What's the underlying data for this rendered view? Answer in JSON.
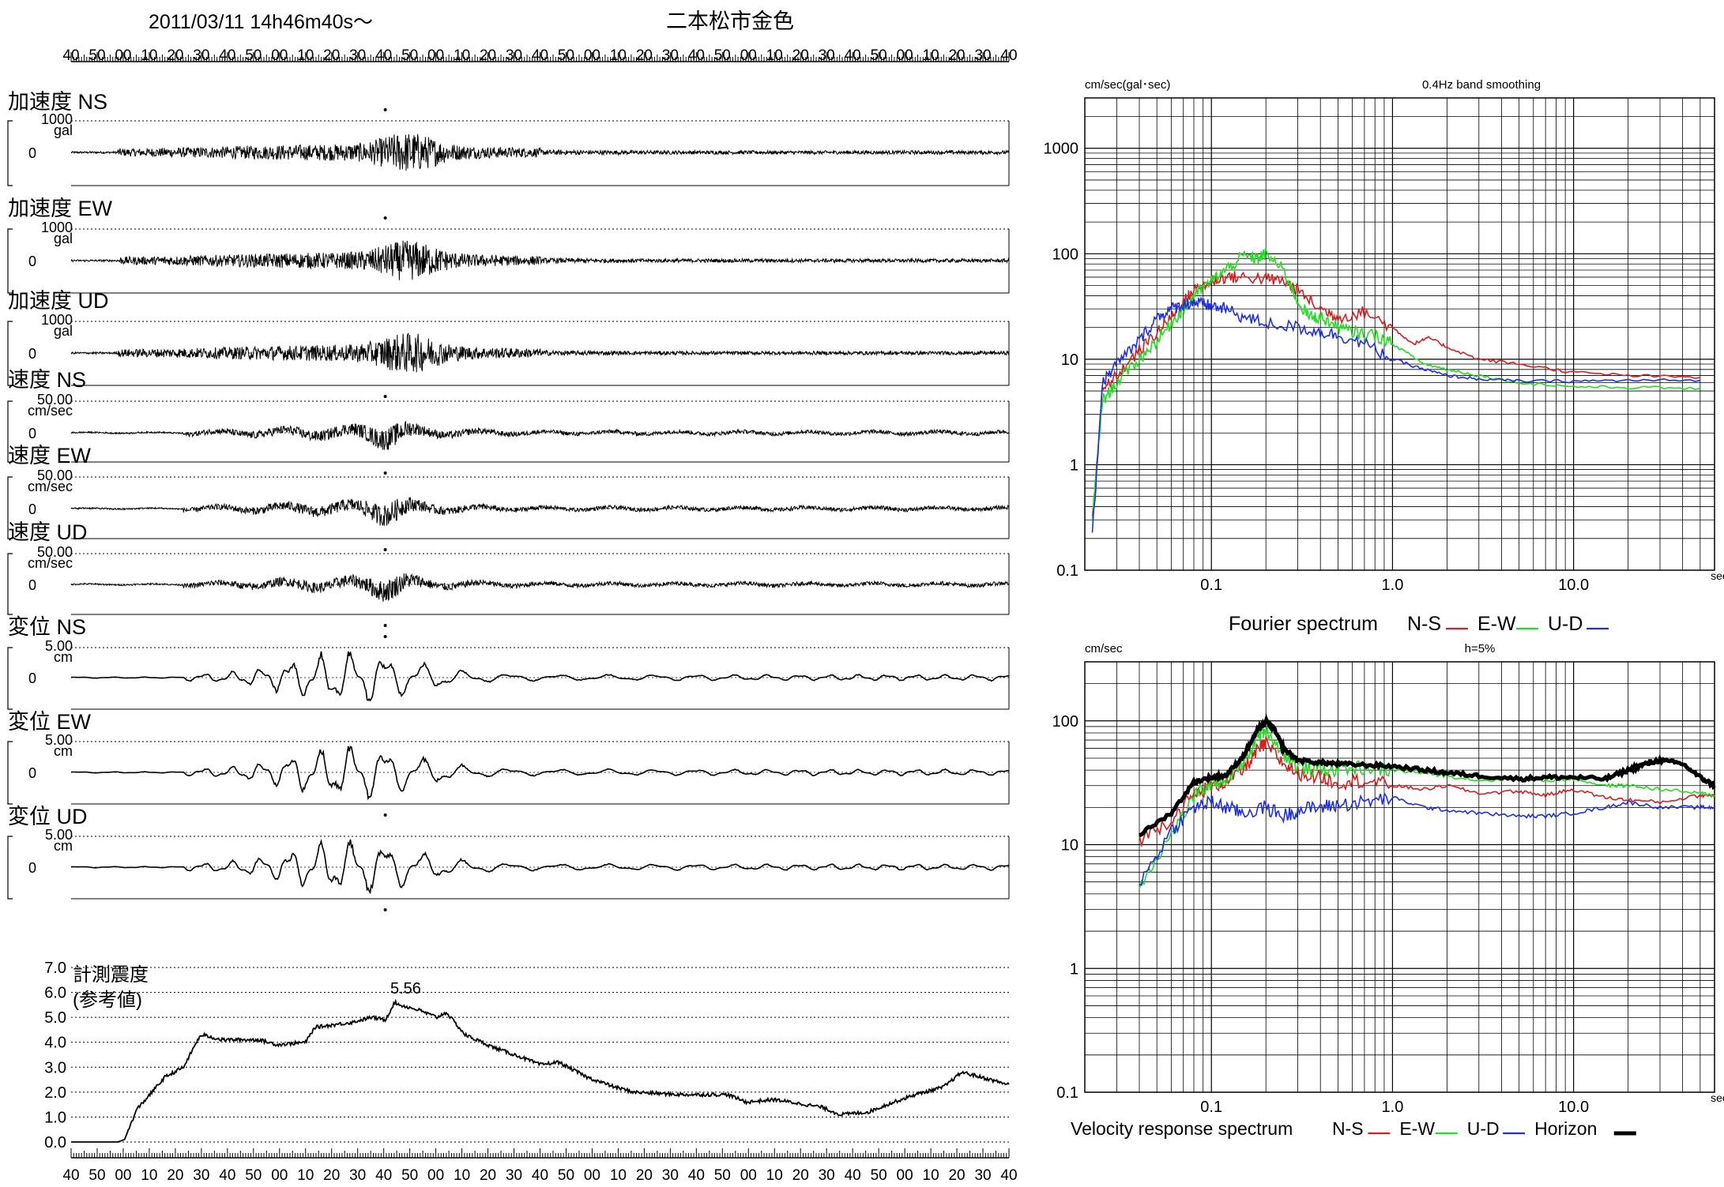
{
  "header": {
    "datetime": "2011/03/11  14h46m40s～",
    "station": "二本松市金色"
  },
  "time_ticks": [
    "40",
    "50",
    "00",
    "10",
    "20",
    "30",
    "40",
    "50",
    "00",
    "10",
    "20",
    "30",
    "40",
    "50",
    "00",
    "10",
    "20",
    "30",
    "40",
    "50",
    "00",
    "10",
    "20",
    "30",
    "40",
    "50",
    "00",
    "10",
    "20",
    "30",
    "40",
    "50",
    "00",
    "10",
    "20",
    "30",
    "40"
  ],
  "traces": [
    {
      "label": "加速度 NS",
      "top": "1000",
      "unit": "gal",
      "zero": "0",
      "shape": "acc",
      "peak": "up"
    },
    {
      "label": "加速度 EW",
      "top": "1000",
      "unit": "gal",
      "zero": "0",
      "shape": "acc",
      "peak": "up"
    },
    {
      "label": "加速度 UD",
      "top": "1000",
      "unit": "gal",
      "zero": "0",
      "shape": "acc",
      "peak": "down"
    },
    {
      "label": "速度 NS",
      "top": "50.00",
      "unit": "cm/sec",
      "zero": "0",
      "shape": "vel",
      "peak": "down"
    },
    {
      "label": "速度 EW",
      "top": "50.00",
      "unit": "cm/sec",
      "zero": "0",
      "shape": "vel",
      "peak": "down"
    },
    {
      "label": "速度 UD",
      "top": "50.00",
      "unit": "cm/sec",
      "zero": "0",
      "shape": "vel",
      "peak": "down"
    },
    {
      "label": "変位 NS",
      "top": "5.00",
      "unit": "cm",
      "zero": "0",
      "shape": "disp",
      "peak": "up"
    },
    {
      "label": "変位 EW",
      "top": "5.00",
      "unit": "cm",
      "zero": "0",
      "shape": "disp",
      "peak": "down"
    },
    {
      "label": "変位 UD",
      "top": "5.00",
      "unit": "cm",
      "zero": "0",
      "shape": "disp",
      "peak": "down"
    }
  ],
  "intensity": {
    "label_line1": "計測震度",
    "label_line2": "(参考値)",
    "yticks": [
      "7.0",
      "6.0",
      "5.0",
      "4.0",
      "3.0",
      "2.0",
      "1.0",
      "0.0"
    ],
    "peak_label": "5.56",
    "peak_value": 5.56
  },
  "chart_data": [
    {
      "type": "line",
      "chart": "fourier",
      "unit_label": "cm/sec(gal･sec)",
      "annotation": "0.4Hz band smoothing",
      "x_unit": "sec",
      "xscale": "log",
      "yscale": "log",
      "xlim": [
        0.02,
        60
      ],
      "ylim": [
        0.1,
        3000
      ],
      "xtick_labels": [
        "0.1",
        "1.0",
        "10.0"
      ],
      "ytick_labels": [
        "1000",
        "100",
        "10",
        "1",
        "0.1"
      ],
      "legend_prefix": "Fourier spectrum",
      "series": [
        {
          "name": "N-S",
          "color": "#d42020",
          "x": [
            0.022,
            0.025,
            0.03,
            0.04,
            0.05,
            0.06,
            0.07,
            0.08,
            0.1,
            0.12,
            0.15,
            0.2,
            0.25,
            0.3,
            0.4,
            0.5,
            0.7,
            1.0,
            1.3,
            1.6,
            2,
            3,
            5,
            10,
            20,
            50
          ],
          "y": [
            0.3,
            5,
            7,
            12,
            18,
            25,
            35,
            45,
            55,
            60,
            60,
            58,
            55,
            45,
            30,
            25,
            28,
            20,
            14,
            16,
            13,
            10,
            9,
            7.5,
            7,
            6.7
          ]
        },
        {
          "name": "E-W",
          "color": "#22dd22",
          "x": [
            0.022,
            0.025,
            0.03,
            0.04,
            0.05,
            0.06,
            0.07,
            0.08,
            0.1,
            0.12,
            0.15,
            0.18,
            0.2,
            0.25,
            0.3,
            0.35,
            0.4,
            0.5,
            0.6,
            0.8,
            1.0,
            1.5,
            2,
            3,
            5,
            10,
            20,
            50
          ],
          "y": [
            0.3,
            4,
            6,
            10,
            15,
            22,
            30,
            40,
            55,
            70,
            95,
            90,
            100,
            70,
            35,
            25,
            25,
            20,
            18,
            17,
            14,
            9,
            8,
            7,
            6,
            5.5,
            5.4,
            5.3
          ]
        },
        {
          "name": "U-D",
          "color": "#2030e0",
          "x": [
            0.022,
            0.025,
            0.03,
            0.04,
            0.05,
            0.06,
            0.07,
            0.08,
            0.09,
            0.1,
            0.12,
            0.15,
            0.2,
            0.3,
            0.4,
            0.5,
            0.7,
            1.0,
            1.5,
            2,
            3,
            5,
            10,
            20,
            50
          ],
          "y": [
            0.2,
            6,
            9,
            15,
            25,
            30,
            33,
            35,
            33,
            32,
            30,
            25,
            22,
            20,
            18,
            17,
            14,
            10,
            8,
            7,
            6.5,
            6.2,
            6.2,
            6.3,
            6.3
          ]
        }
      ]
    },
    {
      "type": "line",
      "chart": "velocity_response",
      "unit_label": "cm/sec",
      "annotation": "h=5%",
      "x_unit": "sec",
      "xscale": "log",
      "yscale": "log",
      "xlim": [
        0.02,
        60
      ],
      "ylim": [
        0.1,
        300
      ],
      "xtick_labels": [
        "0.1",
        "1.0",
        "10.0"
      ],
      "ytick_labels": [
        "100",
        "10",
        "1",
        "0.1"
      ],
      "legend_prefix": "Velocity response spectrum",
      "series": [
        {
          "name": "N-S",
          "color": "#d42020",
          "x": [
            0.04,
            0.06,
            0.08,
            0.1,
            0.12,
            0.15,
            0.18,
            0.2,
            0.25,
            0.3,
            0.4,
            0.5,
            0.7,
            1.0,
            1.5,
            2,
            3,
            5,
            7,
            10,
            15,
            20,
            30,
            50,
            60
          ],
          "y": [
            11,
            16,
            25,
            30,
            32,
            40,
            58,
            65,
            45,
            38,
            35,
            32,
            33,
            30,
            28,
            30,
            26,
            27,
            25,
            28,
            24,
            23,
            22,
            25,
            25
          ]
        },
        {
          "name": "E-W",
          "color": "#22dd22",
          "x": [
            0.04,
            0.06,
            0.08,
            0.1,
            0.12,
            0.15,
            0.18,
            0.2,
            0.25,
            0.3,
            0.4,
            0.5,
            0.7,
            1.0,
            1.5,
            2,
            3,
            5,
            7,
            10,
            15,
            20,
            30,
            50,
            60
          ],
          "y": [
            4.8,
            12,
            24,
            32,
            34,
            45,
            75,
            85,
            55,
            42,
            40,
            41,
            42,
            40,
            38,
            36,
            33,
            34,
            33,
            34,
            30,
            30,
            28,
            26,
            25
          ]
        },
        {
          "name": "U-D",
          "color": "#2030e0",
          "x": [
            0.04,
            0.06,
            0.08,
            0.1,
            0.12,
            0.15,
            0.2,
            0.25,
            0.3,
            0.4,
            0.5,
            0.7,
            1.0,
            1.5,
            2,
            3,
            5,
            7,
            10,
            15,
            20,
            30,
            50,
            60
          ],
          "y": [
            4.8,
            13,
            20,
            22,
            20,
            18,
            20,
            17,
            19,
            20,
            21,
            22,
            24,
            20,
            19,
            18,
            17,
            17,
            18,
            20,
            22,
            20,
            20,
            20
          ]
        },
        {
          "name": "Horizon",
          "color": "#000000",
          "x": [
            0.04,
            0.06,
            0.08,
            0.1,
            0.12,
            0.15,
            0.18,
            0.2,
            0.22,
            0.25,
            0.3,
            0.4,
            0.5,
            0.7,
            1.0,
            1.5,
            2,
            3,
            5,
            7,
            10,
            15,
            20,
            25,
            30,
            40,
            50,
            60
          ],
          "y": [
            12,
            18,
            32,
            35,
            36,
            52,
            85,
            98,
            88,
            60,
            48,
            46,
            45,
            44,
            43,
            40,
            38,
            36,
            34,
            35,
            35,
            34,
            40,
            45,
            48,
            45,
            35,
            30
          ]
        }
      ]
    }
  ]
}
